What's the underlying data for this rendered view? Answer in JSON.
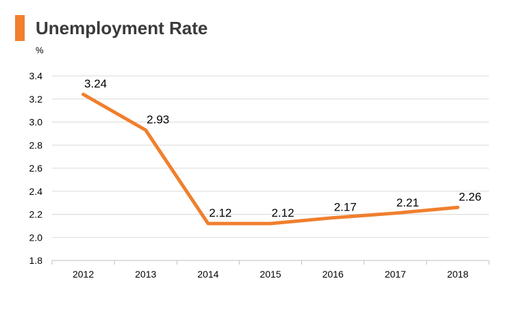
{
  "chart_data": {
    "type": "line",
    "title": "Unemployment Rate",
    "ylabel": "%",
    "xlabel": "",
    "categories": [
      "2012",
      "2013",
      "2014",
      "2015",
      "2016",
      "2017",
      "2018"
    ],
    "series": [
      {
        "values": [
          3.24,
          2.93,
          2.12,
          2.12,
          2.17,
          2.21,
          2.26
        ]
      }
    ],
    "data_labels": [
      "3.24",
      "2.93",
      "2.12",
      "2.12",
      "2.17",
      "2.21",
      "2.26"
    ],
    "yticks": [
      "1.8",
      "2.0",
      "2.2",
      "2.4",
      "2.6",
      "2.8",
      "3.0",
      "3.2",
      "3.4"
    ],
    "ylim": [
      1.8,
      3.4
    ],
    "grid": true,
    "legend": "none",
    "colors": {
      "line": "#f07f2e",
      "accent": "#f07f2e",
      "grid": "#d9d9d9",
      "axis": "#bfbfbf"
    }
  }
}
